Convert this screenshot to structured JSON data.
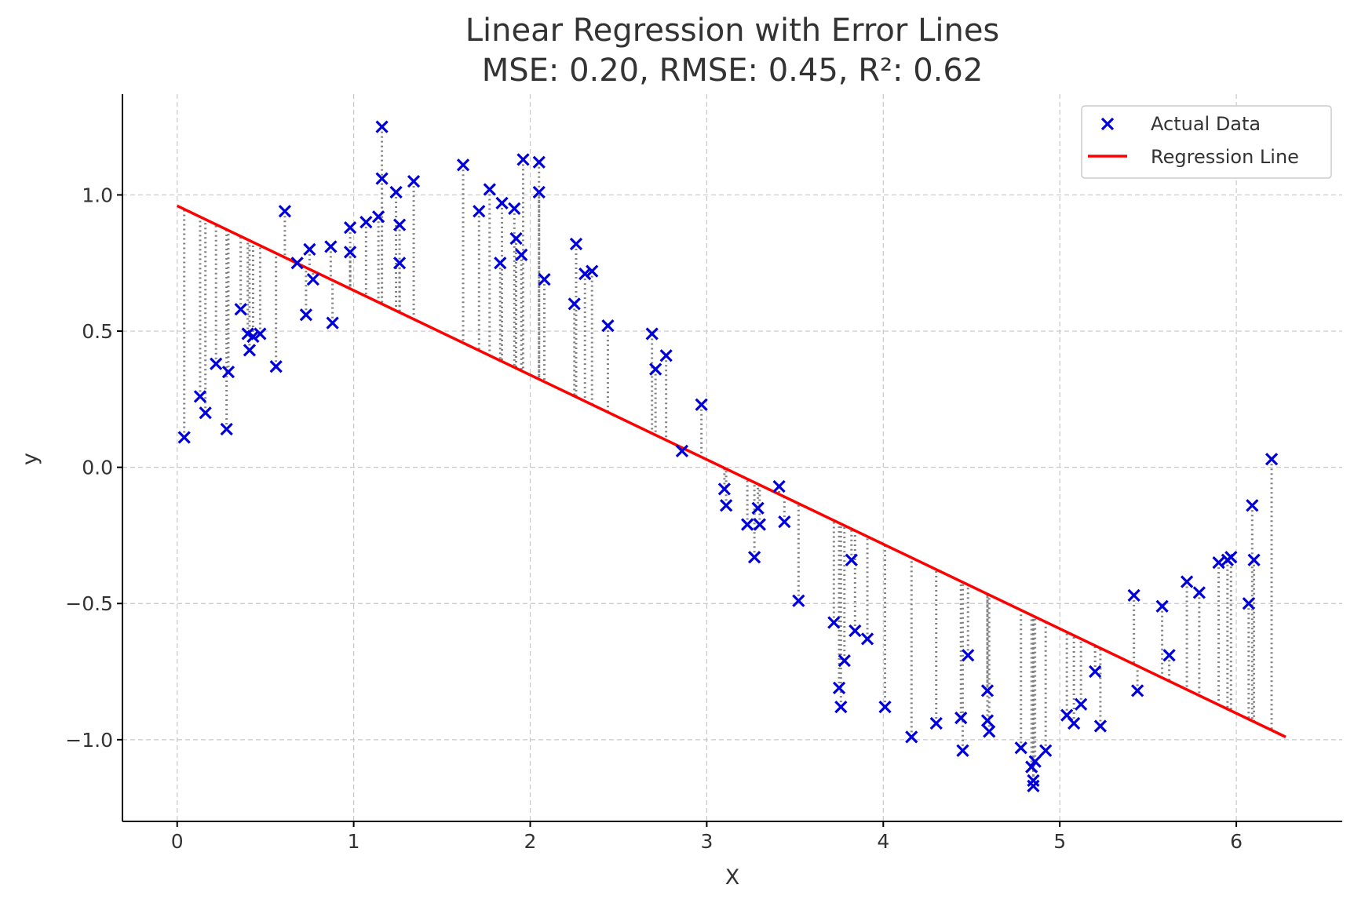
{
  "chart_data": {
    "type": "scatter",
    "title": "Linear Regression with Error Lines",
    "subtitle": "MSE: 0.20, RMSE: 0.45, R²: 0.62",
    "xlabel": "X",
    "ylabel": "y",
    "xlim": [
      -0.31,
      6.6
    ],
    "ylim": [
      -1.3,
      1.37
    ],
    "xticks": [
      0,
      1,
      2,
      3,
      4,
      5,
      6
    ],
    "yticks": [
      -1.0,
      -0.5,
      0.0,
      0.5,
      1.0
    ],
    "ytick_labels": [
      "−1.0",
      "−0.5",
      "0.0",
      "0.5",
      "1.0"
    ],
    "grid": true,
    "legend_position": "top-right",
    "legend": [
      "Actual Data",
      "Regression Line"
    ],
    "colors": {
      "points": "#0000dd",
      "regression": "#ff0000",
      "error_lines": "#808080"
    },
    "regression_line": {
      "x": [
        0.0,
        6.28
      ],
      "y": [
        0.96,
        -0.99
      ]
    },
    "series": [
      {
        "name": "Actual Data",
        "x": [
          0.04,
          0.13,
          0.16,
          0.22,
          0.28,
          0.29,
          0.36,
          0.4,
          0.41,
          0.43,
          0.47,
          0.56,
          0.61,
          0.68,
          0.73,
          0.75,
          0.77,
          0.87,
          0.88,
          0.98,
          0.98,
          1.07,
          1.14,
          1.16,
          1.16,
          1.24,
          1.26,
          1.26,
          1.34,
          1.62,
          1.71,
          1.77,
          1.83,
          1.84,
          1.91,
          1.92,
          1.95,
          1.96,
          2.05,
          2.05,
          2.08,
          2.25,
          2.26,
          2.31,
          2.35,
          2.44,
          2.69,
          2.71,
          2.77,
          2.86,
          2.97,
          3.1,
          3.11,
          3.23,
          3.27,
          3.29,
          3.3,
          3.41,
          3.44,
          3.52,
          3.72,
          3.75,
          3.76,
          3.78,
          3.82,
          3.84,
          3.91,
          4.01,
          4.16,
          4.3,
          4.44,
          4.45,
          4.48,
          4.59,
          4.59,
          4.6,
          4.78,
          4.84,
          4.85,
          4.85,
          4.86,
          4.92,
          5.04,
          5.08,
          5.12,
          5.2,
          5.23,
          5.42,
          5.44,
          5.58,
          5.62,
          5.72,
          5.79,
          5.9,
          5.95,
          5.97,
          6.07,
          6.09,
          6.1,
          6.2
        ],
        "y": [
          0.11,
          0.26,
          0.2,
          0.38,
          0.14,
          0.35,
          0.58,
          0.49,
          0.43,
          0.48,
          0.49,
          0.37,
          0.94,
          0.75,
          0.56,
          0.8,
          0.69,
          0.81,
          0.53,
          0.79,
          0.88,
          0.9,
          0.92,
          1.25,
          1.06,
          1.01,
          0.75,
          0.89,
          1.05,
          1.11,
          0.94,
          1.02,
          0.75,
          0.97,
          0.95,
          0.84,
          0.78,
          1.13,
          1.12,
          1.01,
          0.69,
          0.6,
          0.82,
          0.71,
          0.72,
          0.52,
          0.49,
          0.36,
          0.41,
          0.06,
          0.23,
          -0.08,
          -0.14,
          -0.21,
          -0.33,
          -0.15,
          -0.21,
          -0.07,
          -0.2,
          -0.49,
          -0.57,
          -0.81,
          -0.88,
          -0.71,
          -0.34,
          -0.6,
          -0.63,
          -0.88,
          -0.99,
          -0.94,
          -0.92,
          -1.04,
          -0.69,
          -0.82,
          -0.93,
          -0.97,
          -1.03,
          -1.1,
          -1.15,
          -1.17,
          -1.08,
          -1.04,
          -0.91,
          -0.94,
          -0.87,
          -0.75,
          -0.95,
          -0.47,
          -0.82,
          -0.51,
          -0.69,
          -0.42,
          -0.46,
          -0.35,
          -0.34,
          -0.33,
          -0.5,
          -0.14,
          -0.34,
          0.03
        ]
      }
    ]
  }
}
